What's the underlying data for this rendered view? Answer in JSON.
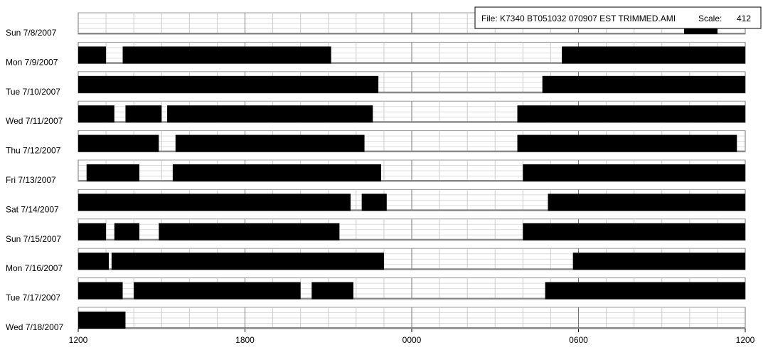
{
  "chart_data": {
    "type": "actogram",
    "file_label": "File: K7340 BT051032 070907 EST TRIMMED.AMI",
    "scale_label": "Scale:",
    "scale": 412,
    "xlim": [
      0,
      24
    ],
    "xticks": [
      {
        "value": 0,
        "label": "1200"
      },
      {
        "value": 6,
        "label": "1800"
      },
      {
        "value": 12,
        "label": "0000"
      },
      {
        "value": 18,
        "label": "0600"
      },
      {
        "value": 24,
        "label": "1200"
      }
    ],
    "grid": true,
    "color": "#000000",
    "rows": [
      {
        "label": "Sun 7/8/2007",
        "active": [
          [
            21.8,
            23.0
          ]
        ]
      },
      {
        "label": "Mon 7/9/2007",
        "active": [
          [
            0,
            1.0
          ],
          [
            1.6,
            9.1
          ],
          [
            17.4,
            24
          ]
        ]
      },
      {
        "label": "Tue 7/10/2007",
        "active": [
          [
            0,
            10.8
          ],
          [
            16.7,
            24
          ]
        ]
      },
      {
        "label": "Wed 7/11/2007",
        "active": [
          [
            0,
            1.3
          ],
          [
            1.7,
            3.0
          ],
          [
            3.2,
            10.6
          ],
          [
            15.8,
            24
          ]
        ]
      },
      {
        "label": "Thu 7/12/2007",
        "active": [
          [
            0,
            2.9
          ],
          [
            3.5,
            10.3
          ],
          [
            15.8,
            23.7
          ]
        ]
      },
      {
        "label": "Fri 7/13/2007",
        "active": [
          [
            0.3,
            2.2
          ],
          [
            3.4,
            10.9
          ],
          [
            16.0,
            24
          ]
        ]
      },
      {
        "label": "Sat 7/14/2007",
        "active": [
          [
            0,
            9.8
          ],
          [
            10.2,
            11.1
          ],
          [
            16.9,
            24
          ]
        ]
      },
      {
        "label": "Sun 7/15/2007",
        "active": [
          [
            0,
            1.0
          ],
          [
            1.3,
            2.2
          ],
          [
            2.9,
            9.4
          ],
          [
            16.0,
            24
          ]
        ]
      },
      {
        "label": "Mon 7/16/2007",
        "active": [
          [
            0,
            1.1
          ],
          [
            1.2,
            11.0
          ],
          [
            17.8,
            24
          ]
        ]
      },
      {
        "label": "Tue 7/17/2007",
        "active": [
          [
            0,
            1.6
          ],
          [
            2.0,
            8.0
          ],
          [
            8.4,
            9.9
          ],
          [
            16.8,
            24
          ]
        ]
      },
      {
        "label": "Wed 7/18/2007",
        "active": [
          [
            0,
            1.7
          ]
        ]
      }
    ]
  }
}
